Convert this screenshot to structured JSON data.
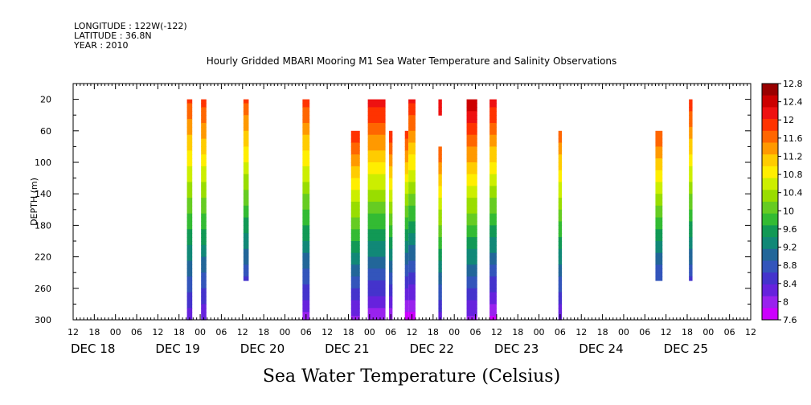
{
  "header": {
    "longitude": "LONGITUDE : 122W(-122)",
    "latitude": "LATITUDE : 36.8N",
    "year": "YEAR : 2010"
  },
  "chart_data": {
    "type": "heatmap",
    "title": "Hourly Gridded MBARI Mooring M1 Sea Water Temperature and Salinity Observations",
    "xlabel": "Sea Water Temperature (Celsius)",
    "ylabel": "DEPTH (m)",
    "xlim": [
      "2010-12-17T12:00",
      "2010-12-25T12:00"
    ],
    "ylim": [
      300,
      0
    ],
    "y_ticks": [
      20,
      60,
      100,
      140,
      180,
      220,
      260,
      300
    ],
    "x_hour_ticks": [
      "12",
      "18",
      "00",
      "06",
      "12",
      "18",
      "00",
      "06",
      "12",
      "18",
      "00",
      "06",
      "12",
      "18",
      "00",
      "06",
      "12",
      "18",
      "00",
      "06",
      "12",
      "18",
      "00",
      "06",
      "12",
      "18",
      "00",
      "06",
      "12",
      "18",
      "00",
      "06",
      "12"
    ],
    "x_day_labels": [
      "DEC 18",
      "DEC 19",
      "DEC 20",
      "DEC 21",
      "DEC 22",
      "DEC 23",
      "DEC 24",
      "DEC 25"
    ],
    "colorbar": {
      "levels": [
        12.8,
        12.4,
        12,
        11.6,
        11.2,
        10.8,
        10.4,
        10,
        9.6,
        9.2,
        8.8,
        8.4,
        8,
        7.6
      ],
      "colors": [
        "#990000",
        "#cc0000",
        "#ee1111",
        "#ff3300",
        "#ff6600",
        "#ff9900",
        "#ffcc00",
        "#ffee00",
        "#ccee00",
        "#99dd00",
        "#66cc22",
        "#33bb33",
        "#119955",
        "#118877",
        "#226699",
        "#3355bb",
        "#4433cc",
        "#6622dd",
        "#9922ee",
        "#cc00ff"
      ]
    },
    "profiles": [
      {
        "time": "2010-12-18T21:00",
        "span_h": 1.5,
        "depth_top": 20,
        "depth_bottom": 300,
        "temp_top": 11.8,
        "temp_bottom": 8.2
      },
      {
        "time": "2010-12-19T01:00",
        "span_h": 1.5,
        "depth_top": 20,
        "depth_bottom": 300,
        "temp_top": 11.9,
        "temp_bottom": 8.1
      },
      {
        "time": "2010-12-19T13:00",
        "span_h": 1.5,
        "depth_top": 20,
        "depth_bottom": 250,
        "temp_top": 11.8,
        "temp_bottom": 8.6
      },
      {
        "time": "2010-12-20T06:00",
        "span_h": 2.0,
        "depth_top": 20,
        "depth_bottom": 300,
        "temp_top": 11.9,
        "temp_bottom": 8.0
      },
      {
        "time": "2010-12-20T20:00",
        "span_h": 2.5,
        "depth_top": 60,
        "depth_bottom": 300,
        "temp_top": 12.0,
        "temp_bottom": 8.0
      },
      {
        "time": "2010-12-21T02:00",
        "span_h": 5.0,
        "depth_top": 20,
        "depth_bottom": 300,
        "temp_top": 12.2,
        "temp_bottom": 7.9
      },
      {
        "time": "2010-12-21T06:00",
        "span_h": 1.0,
        "depth_top": 60,
        "depth_bottom": 300,
        "temp_top": 12.0,
        "temp_bottom": 7.9
      },
      {
        "time": "2010-12-21T10:30",
        "span_h": 1.0,
        "depth_top": 60,
        "depth_bottom": 300,
        "temp_top": 11.9,
        "temp_bottom": 7.7
      },
      {
        "time": "2010-12-21T12:00",
        "span_h": 2.0,
        "depth_top": 20,
        "depth_bottom": 300,
        "temp_top": 12.1,
        "temp_bottom": 7.7
      },
      {
        "time": "2010-12-21T20:00",
        "span_h": 1.0,
        "depth_top": 20,
        "depth_bottom": 40,
        "temp_top": 12.1,
        "temp_bottom": 12.1
      },
      {
        "time": "2010-12-21T20:00",
        "span_h": 1.0,
        "depth_top": 80,
        "depth_bottom": 300,
        "temp_top": 11.8,
        "temp_bottom": 8.2
      },
      {
        "time": "2010-12-22T05:00",
        "span_h": 3.0,
        "depth_top": 20,
        "depth_bottom": 300,
        "temp_top": 12.5,
        "temp_bottom": 8.0
      },
      {
        "time": "2010-12-22T11:00",
        "span_h": 2.0,
        "depth_top": 20,
        "depth_bottom": 300,
        "temp_top": 12.2,
        "temp_bottom": 7.8
      },
      {
        "time": "2010-12-23T06:00",
        "span_h": 1.0,
        "depth_top": 60,
        "depth_bottom": 300,
        "temp_top": 11.7,
        "temp_bottom": 8.1
      },
      {
        "time": "2010-12-24T10:00",
        "span_h": 2.0,
        "depth_top": 60,
        "depth_bottom": 250,
        "temp_top": 11.8,
        "temp_bottom": 8.6
      },
      {
        "time": "2010-12-24T19:00",
        "span_h": 1.0,
        "depth_top": 20,
        "depth_bottom": 250,
        "temp_top": 12.0,
        "temp_bottom": 8.6
      }
    ]
  }
}
